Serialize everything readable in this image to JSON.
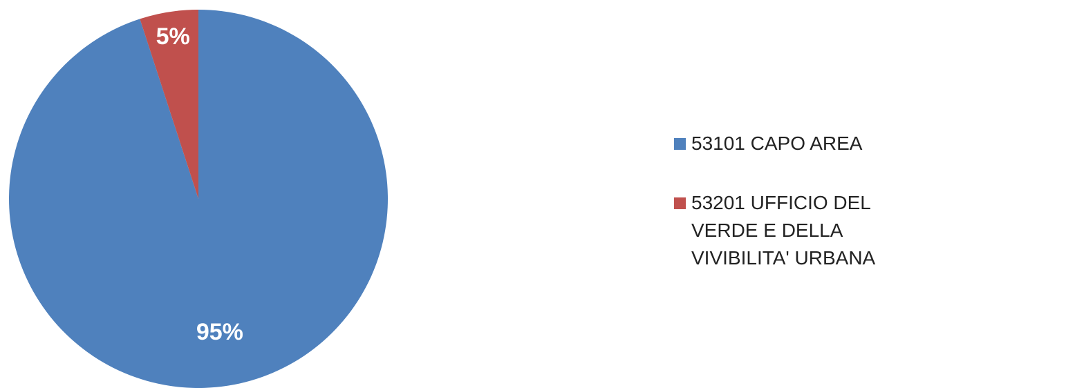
{
  "chart_data": {
    "type": "pie",
    "categories": [
      "53101 CAPO AREA",
      "53201 UFFICIO DEL VERDE E DELLA VIVIBILITA' URBANA"
    ],
    "values": [
      95,
      5
    ],
    "value_labels": [
      "95%",
      "5%"
    ],
    "colors": [
      "#4f81bd",
      "#c0504d"
    ],
    "legend": "right"
  }
}
